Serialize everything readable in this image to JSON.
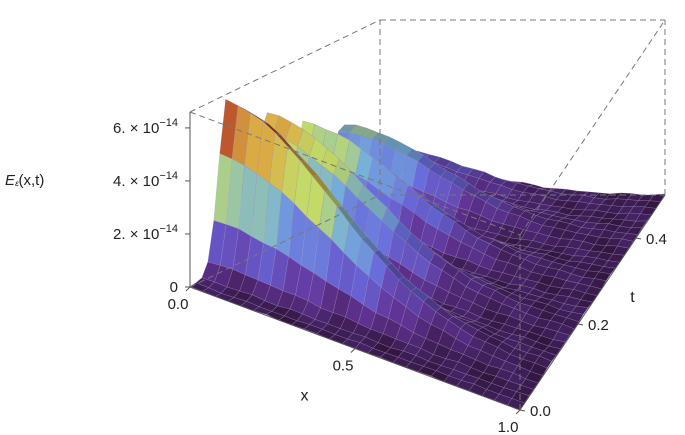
{
  "chart_data": {
    "type": "surface3d",
    "zlabel_main": "E",
    "zlabel_sub": "ᵋ",
    "zlabel_args": "(x,t)",
    "xlabel": "x",
    "tlabel": "t",
    "x_ticks": [
      "0.0",
      "0.5",
      "1.0"
    ],
    "x_tick_values": [
      0.0,
      0.5,
      1.0
    ],
    "t_ticks": [
      "0.0",
      "0.2",
      "0.4"
    ],
    "t_tick_values": [
      0.0,
      0.2,
      0.4
    ],
    "z_ticks": [
      "0",
      "2. × 10",
      "4. × 10",
      "6. × 10"
    ],
    "z_tick_exps": [
      "",
      "−14",
      "−14",
      "−14"
    ],
    "z_tick_values": [
      0,
      2e-14,
      4e-14,
      6e-14
    ],
    "xlim": [
      0,
      1
    ],
    "tlim": [
      0,
      0.5
    ],
    "zlim": [
      0,
      6.6e-14
    ],
    "ridges": [
      {
        "t": 0.1,
        "peak": 6.6e-14
      },
      {
        "t": 0.2,
        "peak": 5.2e-14
      },
      {
        "t": 0.3,
        "peak": 4.2e-14
      },
      {
        "t": 0.4,
        "peak": 3.4e-14
      },
      {
        "t": 0.48,
        "peak": 2e-14
      }
    ],
    "colormap": [
      "#3a1a4a",
      "#5a2f8a",
      "#5f5fc8",
      "#6aa0c8",
      "#b0c860",
      "#c8a040",
      "#a03020"
    ]
  }
}
